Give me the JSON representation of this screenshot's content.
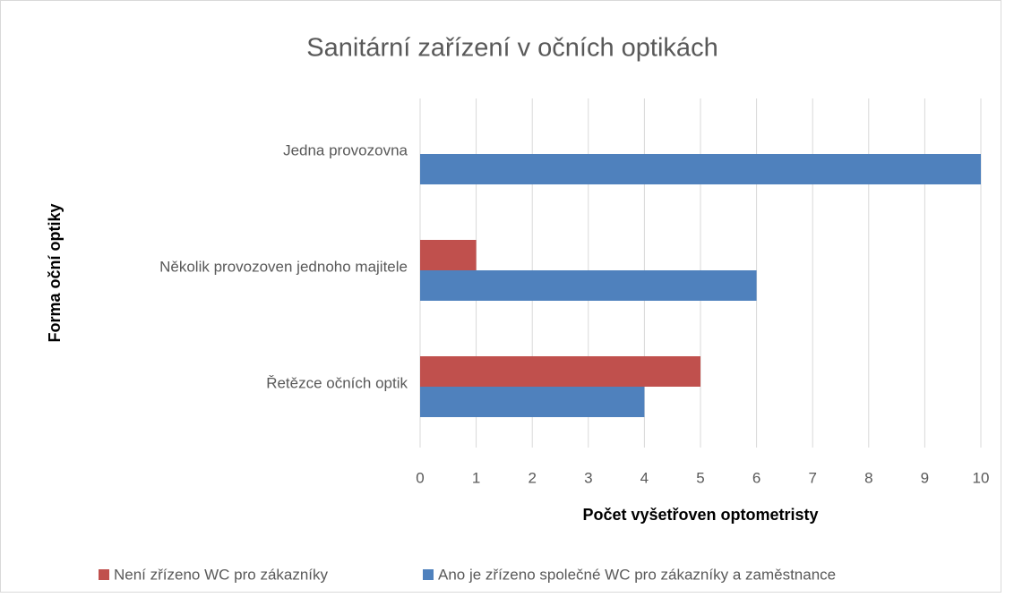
{
  "chart_data": {
    "type": "barh",
    "title": "Sanitární zařízení v očních optikách",
    "x_label": "Počet vyšetřoven optometristy",
    "y_label": "Forma oční optiky",
    "categories": [
      "Jedna provozovna",
      "Několik provozoven jednoho majitele",
      "Řetězce očních optik"
    ],
    "series": [
      {
        "name": "Není zřízeno WC pro zákazníky",
        "color": "#c0504d",
        "values": [
          0,
          1,
          5
        ]
      },
      {
        "name": "Ano je zřízeno společné WC pro zákazníky a zaměstnance",
        "color": "#4f81bd",
        "values": [
          10,
          6,
          4
        ]
      }
    ],
    "xlim": [
      0,
      10
    ],
    "xticks": [
      0,
      1,
      2,
      3,
      4,
      5,
      6,
      7,
      8,
      9,
      10
    ],
    "grid": true,
    "legend": "bottom"
  }
}
